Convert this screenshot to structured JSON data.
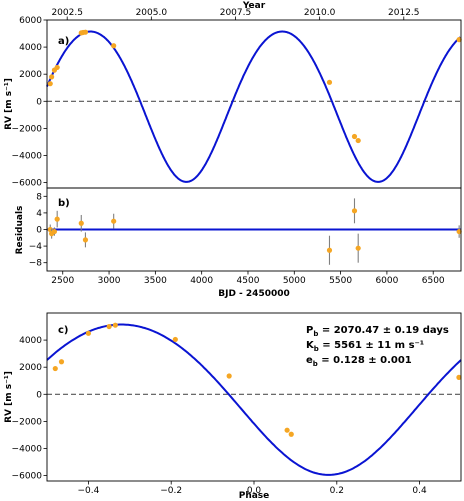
{
  "colors": {
    "model": "#0a14d2",
    "points": "#f5a623",
    "errorbar": "#808080",
    "zero": "#555555",
    "axes": "#000000"
  },
  "chart_data": [
    {
      "id": "a",
      "type": "line",
      "panel_label": "a)",
      "ylabel": "RV [m s⁻¹]",
      "top_axis_label": "Year",
      "xlim": [
        2330,
        6800
      ],
      "ylim": [
        -6400,
        6000
      ],
      "xticks": [],
      "yticks": [
        -6000,
        -4000,
        -2000,
        0,
        2000,
        4000,
        6000
      ],
      "ytick_labels": [
        "−6000",
        "−4000",
        "−2000",
        "0",
        "2000",
        "4000",
        "6000"
      ],
      "top_ticks": [
        2002.5,
        2005.0,
        2007.5,
        2010.0,
        2012.5
      ],
      "top_tick_labels": [
        "2002.5",
        "2005.0",
        "2007.5",
        "2010.0",
        "2012.5"
      ],
      "zero_line": true,
      "model": {
        "period": 2070.47,
        "K": 5561,
        "e": 0.128,
        "ymax": 5150,
        "ymin": -5950,
        "tmax": 4870
      },
      "points": {
        "x": [
          2365,
          2380,
          2410,
          2440,
          2700,
          2720,
          2745,
          3050,
          5380,
          5650,
          5690,
          6780
        ],
        "y": [
          1300,
          1800,
          2300,
          2500,
          5050,
          5080,
          5100,
          4100,
          1400,
          -2600,
          -2900,
          4550
        ]
      }
    },
    {
      "id": "b",
      "type": "scatter",
      "panel_label": "b)",
      "ylabel": "Residuals",
      "xlabel": "BJD - 2450000",
      "xlim": [
        2330,
        6800
      ],
      "ylim": [
        -10,
        10
      ],
      "xticks": [
        2500,
        3000,
        3500,
        4000,
        4500,
        5000,
        5500,
        6000,
        6500
      ],
      "xtick_labels": [
        "2500",
        "3000",
        "3500",
        "4000",
        "4500",
        "5000",
        "5500",
        "6000",
        "6500"
      ],
      "yticks": [
        -8,
        -4,
        0,
        4,
        8
      ],
      "ytick_labels": [
        "−8",
        "−4",
        "0",
        "4",
        "8"
      ],
      "model_line_y": 0,
      "points": {
        "x": [
          2365,
          2380,
          2410,
          2440,
          2700,
          2745,
          3050,
          5380,
          5650,
          5690,
          6780
        ],
        "y": [
          0.0,
          -1.0,
          -0.5,
          2.5,
          1.5,
          -2.5,
          2.0,
          -5.0,
          4.5,
          -4.5,
          -0.5
        ],
        "err": [
          1.2,
          1.2,
          1.0,
          2.0,
          2.0,
          1.8,
          1.8,
          3.5,
          3.0,
          3.5,
          1.5
        ]
      }
    },
    {
      "id": "c",
      "type": "line",
      "panel_label": "c)",
      "ylabel": "RV [m s⁻¹]",
      "xlabel": "Phase",
      "xlim": [
        -0.5,
        0.5
      ],
      "ylim": [
        -6400,
        6000
      ],
      "xticks": [
        -0.4,
        -0.2,
        0.0,
        0.2,
        0.4
      ],
      "xtick_labels": [
        "−0.4",
        "−0.2",
        "0.0",
        "0.2",
        "0.4"
      ],
      "yticks": [
        -6000,
        -4000,
        -2000,
        0,
        2000,
        4000
      ],
      "ytick_labels": [
        "−6000",
        "−4000",
        "−2000",
        "0",
        "2000",
        "4000"
      ],
      "zero_line": true,
      "model": {
        "phase_max": -0.32,
        "phase_min": 0.26,
        "ymax": 5150,
        "ymin": -5950
      },
      "points": {
        "x": [
          -0.48,
          -0.465,
          -0.4,
          -0.35,
          -0.335,
          -0.19,
          -0.06,
          0.08,
          0.09,
          0.495
        ],
        "y": [
          1900,
          2400,
          4500,
          5000,
          5100,
          4050,
          1350,
          -2650,
          -2950,
          1250
        ]
      },
      "params": {
        "Pb": {
          "name": "P",
          "sub": "b",
          "value": " = 2070.47 ± 0.19 days"
        },
        "Kb": {
          "name": "K",
          "sub": "b",
          "value": " = 5561 ± 11 m s⁻¹"
        },
        "eb": {
          "name": "e",
          "sub": "b",
          "value": " = 0.128 ± 0.001"
        }
      }
    }
  ]
}
